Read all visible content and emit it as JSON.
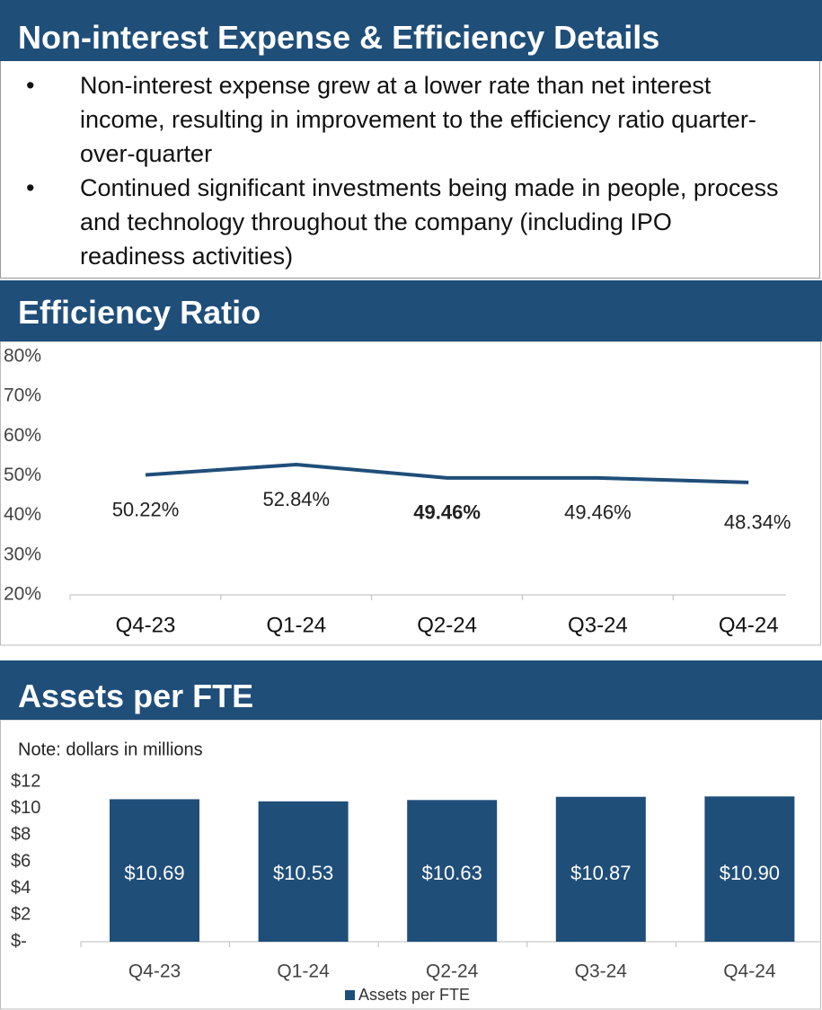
{
  "header": {
    "title": "Non-interest Expense & Efficiency Details"
  },
  "bullets": [
    "Non-interest expense grew at a lower rate than net interest income, resulting in improvement to the efficiency ratio quarter-over-quarter",
    "Continued significant investments being made in people, process and technology throughout the company (including IPO readiness activities)"
  ],
  "chart_data": [
    {
      "type": "line",
      "title": "Efficiency Ratio",
      "categories": [
        "Q4-23",
        "Q1-24",
        "Q2-24",
        "Q3-24",
        "Q4-24"
      ],
      "values": [
        50.22,
        52.84,
        49.46,
        49.46,
        48.34
      ],
      "value_labels": [
        "50.22%",
        "52.84%",
        "49.46%",
        "49.46%",
        "48.34%"
      ],
      "color": "#1f4e79",
      "ylim": [
        20,
        80
      ],
      "yticks": [
        {
          "value": 20,
          "label": "20%"
        },
        {
          "value": 30,
          "label": "30%"
        },
        {
          "value": 40,
          "label": "40%"
        },
        {
          "value": 50,
          "label": "50%"
        },
        {
          "value": 60,
          "label": "60%"
        },
        {
          "value": 70,
          "label": "70%"
        },
        {
          "value": 80,
          "label": "80%"
        }
      ]
    },
    {
      "type": "bar",
      "title": "Assets per FTE",
      "note": "Note: dollars in millions",
      "categories": [
        "Q4-23",
        "Q1-24",
        "Q2-24",
        "Q3-24",
        "Q4-24"
      ],
      "series": [
        {
          "name": "Assets per FTE",
          "color": "#1f4e79",
          "values": [
            10.69,
            10.53,
            10.63,
            10.87,
            10.9
          ],
          "value_labels": [
            "$10.69",
            "$10.53",
            "$10.63",
            "$10.87",
            "$10.90"
          ]
        }
      ],
      "ylim": [
        0,
        12
      ],
      "yticks": [
        {
          "value": 0,
          "label": "$-"
        },
        {
          "value": 2,
          "label": "$2"
        },
        {
          "value": 4,
          "label": "$4"
        },
        {
          "value": 6,
          "label": "$6"
        },
        {
          "value": 8,
          "label": "$8"
        },
        {
          "value": 10,
          "label": "$10"
        },
        {
          "value": 12,
          "label": "$12"
        }
      ]
    }
  ]
}
